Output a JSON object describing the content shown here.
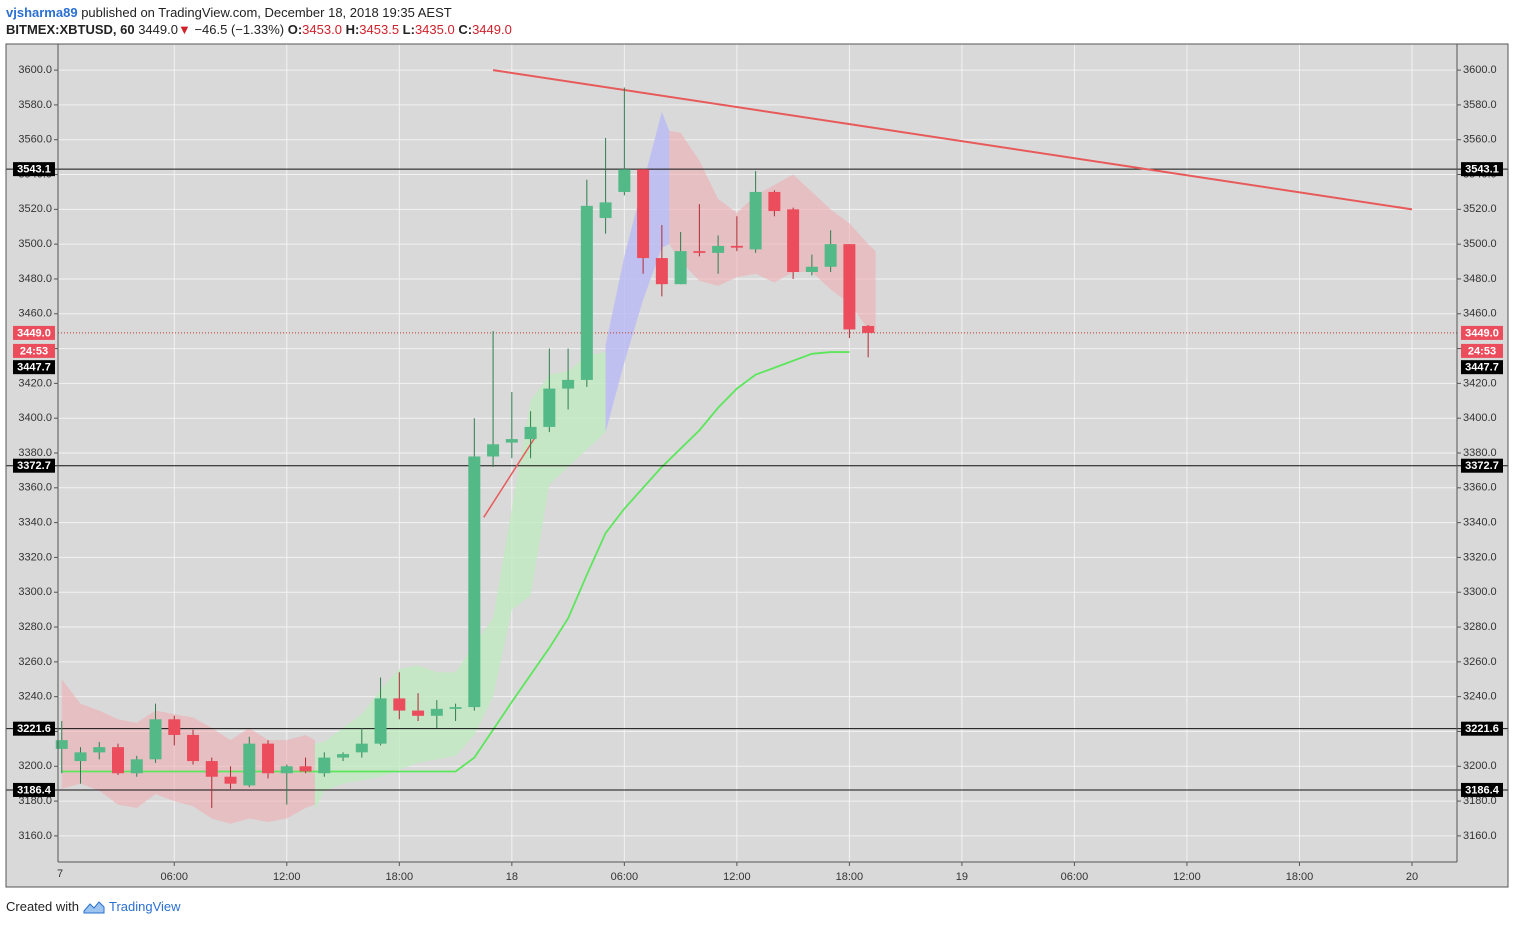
{
  "header": {
    "author": "vjsharma89",
    "published": "published on TradingView.com, December 18, 2018 19:35 AEST",
    "symbol": "BITMEX:XBTUSD, 60",
    "price": "3449.0",
    "change_arrow": "▼",
    "change": "−46.5 (−1.33%)",
    "o_label": "O:",
    "o_value": "3453.0",
    "h_label": "H:",
    "h_value": "3453.5",
    "l_label": "L:",
    "l_value": "3435.0",
    "c_label": "C:",
    "c_value": "3449.0"
  },
  "footer": {
    "created": "Created with",
    "brand": "TradingView",
    "icon": "tradingview-logo-icon"
  },
  "colors": {
    "up": "#53b987",
    "down": "#eb4d5c",
    "plot_bg": "#d9d9d9",
    "grid": "#f2f2f2",
    "trendline": "#e85a5a",
    "ma": "#5ce65c",
    "band_red": "rgba(240,170,175,0.55)",
    "band_green": "rgba(190,235,190,0.75)",
    "band_blue": "rgba(185,185,245,0.8)"
  },
  "chart_data": {
    "type": "candlestick",
    "ylim": [
      3145,
      3615
    ],
    "y_ticks": [
      "3160.0",
      "3180.0",
      "3200.0",
      "3220.0",
      "3240.0",
      "3260.0",
      "3280.0",
      "3300.0",
      "3320.0",
      "3340.0",
      "3360.0",
      "3380.0",
      "3400.0",
      "3420.0",
      "3440.0",
      "3460.0",
      "3480.0",
      "3500.0",
      "3520.0",
      "3540.0",
      "3560.0",
      "3580.0",
      "3600.0"
    ],
    "x_ticks": [
      {
        "label": "06:00",
        "hour": 6
      },
      {
        "label": "12:00",
        "hour": 12
      },
      {
        "label": "18:00",
        "hour": 18
      },
      {
        "label": "18",
        "hour": 24
      },
      {
        "label": "06:00",
        "hour": 30
      },
      {
        "label": "12:00",
        "hour": 36
      },
      {
        "label": "18:00",
        "hour": 42
      },
      {
        "label": "19",
        "hour": 48
      },
      {
        "label": "06:00",
        "hour": 54
      },
      {
        "label": "12:00",
        "hour": 60
      },
      {
        "label": "18:00",
        "hour": 66
      },
      {
        "label": "20",
        "hour": 72
      }
    ],
    "x_first_label": "7",
    "x_hour_range": [
      -0.2,
      74.4
    ],
    "candles": [
      {
        "o": 3210,
        "h": 3226,
        "l": 3196,
        "c": 3215
      },
      {
        "o": 3203,
        "h": 3211,
        "l": 3190,
        "c": 3208
      },
      {
        "o": 3208,
        "h": 3214,
        "l": 3204,
        "c": 3211
      },
      {
        "o": 3211,
        "h": 3213,
        "l": 3195,
        "c": 3196
      },
      {
        "o": 3196,
        "h": 3206,
        "l": 3194,
        "c": 3204
      },
      {
        "o": 3204,
        "h": 3236,
        "l": 3202,
        "c": 3227
      },
      {
        "o": 3227,
        "h": 3229,
        "l": 3212,
        "c": 3218
      },
      {
        "o": 3218,
        "h": 3221,
        "l": 3201,
        "c": 3203
      },
      {
        "o": 3203,
        "h": 3205,
        "l": 3176,
        "c": 3194
      },
      {
        "o": 3194,
        "h": 3200,
        "l": 3187,
        "c": 3190
      },
      {
        "o": 3189,
        "h": 3217,
        "l": 3188,
        "c": 3213
      },
      {
        "o": 3213,
        "h": 3215,
        "l": 3193,
        "c": 3196
      },
      {
        "o": 3196,
        "h": 3201,
        "l": 3178,
        "c": 3200
      },
      {
        "o": 3200,
        "h": 3205,
        "l": 3196,
        "c": 3197
      },
      {
        "o": 3196,
        "h": 3208,
        "l": 3194,
        "c": 3205
      },
      {
        "o": 3205,
        "h": 3208,
        "l": 3203,
        "c": 3207
      },
      {
        "o": 3208,
        "h": 3222,
        "l": 3205,
        "c": 3213
      },
      {
        "o": 3213,
        "h": 3251,
        "l": 3212,
        "c": 3239
      },
      {
        "o": 3239,
        "h": 3254,
        "l": 3227,
        "c": 3232
      },
      {
        "o": 3232,
        "h": 3242,
        "l": 3226,
        "c": 3229
      },
      {
        "o": 3229,
        "h": 3238,
        "l": 3222,
        "c": 3233
      },
      {
        "o": 3233,
        "h": 3236,
        "l": 3226,
        "c": 3234
      },
      {
        "o": 3234,
        "h": 3400,
        "l": 3232,
        "c": 3378
      },
      {
        "o": 3378,
        "h": 3450,
        "l": 3372,
        "c": 3385
      },
      {
        "o": 3386,
        "h": 3415,
        "l": 3377,
        "c": 3388
      },
      {
        "o": 3388,
        "h": 3404,
        "l": 3377,
        "c": 3395
      },
      {
        "o": 3395,
        "h": 3440,
        "l": 3392,
        "c": 3417
      },
      {
        "o": 3417,
        "h": 3440,
        "l": 3405,
        "c": 3422
      },
      {
        "o": 3422,
        "h": 3537,
        "l": 3418,
        "c": 3522
      },
      {
        "o": 3515,
        "h": 3561,
        "l": 3506,
        "c": 3524
      },
      {
        "o": 3530,
        "h": 3590,
        "l": 3528,
        "c": 3543
      },
      {
        "o": 3543,
        "h": 3543,
        "l": 3483,
        "c": 3492
      },
      {
        "o": 3492,
        "h": 3511,
        "l": 3470,
        "c": 3477
      },
      {
        "o": 3477,
        "h": 3507,
        "l": 3477,
        "c": 3496
      },
      {
        "o": 3496,
        "h": 3523,
        "l": 3493,
        "c": 3495
      },
      {
        "o": 3495,
        "h": 3505,
        "l": 3483,
        "c": 3499
      },
      {
        "o": 3499,
        "h": 3516,
        "l": 3496,
        "c": 3498
      },
      {
        "o": 3497,
        "h": 3542,
        "l": 3495,
        "c": 3530
      },
      {
        "o": 3530,
        "h": 3531,
        "l": 3516,
        "c": 3519
      },
      {
        "o": 3520,
        "h": 3521,
        "l": 3480,
        "c": 3484
      },
      {
        "o": 3484,
        "h": 3494,
        "l": 3482,
        "c": 3487
      },
      {
        "o": 3487,
        "h": 3508,
        "l": 3484,
        "c": 3500
      },
      {
        "o": 3500,
        "h": 3500,
        "l": 3446,
        "c": 3451
      },
      {
        "o": 3453,
        "h": 3453.5,
        "l": 3435,
        "c": 3449
      }
    ],
    "ma_line": [
      [
        0,
        3197
      ],
      [
        21,
        3197
      ],
      [
        22,
        3205
      ],
      [
        24,
        3237
      ],
      [
        26,
        3268
      ],
      [
        27,
        3285
      ],
      [
        28,
        3310
      ],
      [
        29,
        3334
      ],
      [
        30,
        3348
      ],
      [
        32,
        3372
      ],
      [
        34,
        3393
      ],
      [
        35,
        3406
      ],
      [
        36,
        3417
      ],
      [
        37,
        3425
      ],
      [
        38,
        3429
      ],
      [
        40,
        3437
      ],
      [
        41,
        3438
      ],
      [
        42,
        3438
      ]
    ],
    "band_segments": [
      {
        "color": "red",
        "points": [
          [
            0,
            3250,
            3187
          ],
          [
            1,
            3236,
            3190
          ],
          [
            2,
            3232,
            3186
          ],
          [
            3,
            3227,
            3178
          ],
          [
            4,
            3225,
            3176
          ],
          [
            5,
            3232,
            3184
          ],
          [
            6,
            3230,
            3180
          ],
          [
            7,
            3228,
            3177
          ],
          [
            8,
            3222,
            3170
          ],
          [
            9,
            3215,
            3167
          ],
          [
            10,
            3222,
            3170
          ],
          [
            11,
            3215,
            3168
          ],
          [
            12,
            3215,
            3170
          ],
          [
            13,
            3218,
            3176
          ],
          [
            13.5,
            3215,
            3178
          ]
        ]
      },
      {
        "color": "green",
        "points": [
          [
            13.5,
            3213,
            3175
          ],
          [
            14,
            3214,
            3186
          ],
          [
            15,
            3222,
            3190
          ],
          [
            16,
            3230,
            3192
          ],
          [
            17,
            3244,
            3194
          ],
          [
            18,
            3256,
            3198
          ],
          [
            19,
            3258,
            3202
          ],
          [
            20,
            3254,
            3204
          ],
          [
            21,
            3254,
            3206
          ],
          [
            22,
            3270,
            3218
          ],
          [
            23,
            3285,
            3240
          ],
          [
            24,
            3348,
            3290
          ],
          [
            25,
            3410,
            3298
          ],
          [
            26,
            3425,
            3362
          ],
          [
            27,
            3427,
            3372
          ],
          [
            28,
            3436,
            3382
          ],
          [
            29,
            3438,
            3392
          ]
        ]
      },
      {
        "color": "blue",
        "points": [
          [
            29,
            3442,
            3392
          ],
          [
            30,
            3493,
            3432
          ],
          [
            31,
            3535,
            3468
          ],
          [
            32,
            3576,
            3498
          ],
          [
            32.4,
            3565,
            3500
          ]
        ]
      },
      {
        "color": "red",
        "points": [
          [
            32.4,
            3565,
            3500
          ],
          [
            33,
            3564,
            3490
          ],
          [
            34,
            3548,
            3479
          ],
          [
            35,
            3526,
            3476
          ],
          [
            36,
            3518,
            3481
          ],
          [
            37,
            3528,
            3483
          ],
          [
            38,
            3534,
            3478
          ],
          [
            39,
            3540,
            3484
          ],
          [
            40,
            3530,
            3484
          ],
          [
            41,
            3520,
            3474
          ],
          [
            42,
            3512,
            3466
          ],
          [
            43,
            3500,
            3451
          ],
          [
            43.4,
            3496,
            3449
          ]
        ]
      }
    ],
    "trendline": [
      [
        23,
        3600
      ],
      [
        72,
        3520
      ]
    ],
    "small_trend": [
      [
        22.5,
        3343
      ],
      [
        25.3,
        3390
      ]
    ],
    "horizontal_levels": [
      {
        "value": 3543.1,
        "label": "3543.1"
      },
      {
        "value": 3372.7,
        "label": "3372.7"
      },
      {
        "value": 3221.6,
        "label": "3221.6"
      },
      {
        "value": 3186.4,
        "label": "3186.4"
      }
    ],
    "last_price": {
      "value": 3449.0,
      "label": "3449.0",
      "countdown": "24:53"
    },
    "ref_price": {
      "value": 3447.7,
      "label": "3447.7"
    }
  }
}
